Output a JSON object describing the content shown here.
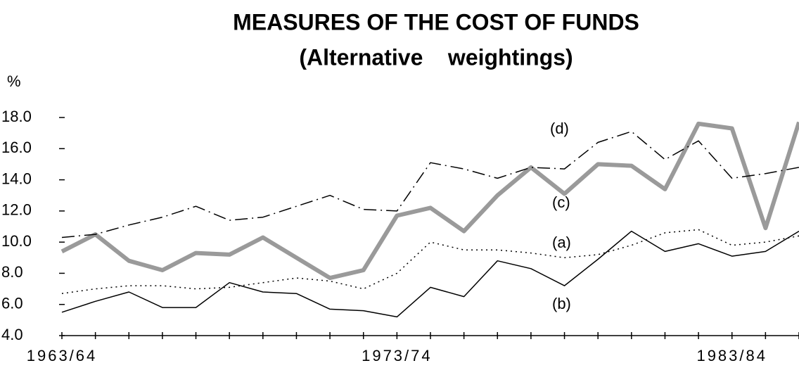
{
  "chart_data": {
    "type": "line",
    "title": "MEASURES OF THE COST OF FUNDS",
    "subtitle": "(Alternative    weightings)",
    "y_label": "%",
    "categories": [
      "1963/64",
      null,
      null,
      null,
      null,
      null,
      null,
      null,
      null,
      null,
      "1973/74",
      null,
      null,
      null,
      null,
      null,
      null,
      null,
      null,
      null,
      "1983/84",
      null,
      null
    ],
    "ylim": [
      4,
      18
    ],
    "yticks": [
      {
        "value": 4,
        "label": "4.0"
      },
      {
        "value": 6,
        "label": "6.0"
      },
      {
        "value": 8,
        "label": "8.0"
      },
      {
        "value": 10,
        "label": "10.0"
      },
      {
        "value": 12,
        "label": "12.0"
      },
      {
        "value": 14,
        "label": "14.0"
      },
      {
        "value": 16,
        "label": "16.0"
      },
      {
        "value": 18,
        "label": "18.0"
      }
    ],
    "series": [
      {
        "name": "(a)",
        "color": "#000000",
        "style": "dotted",
        "values": [
          6.7,
          7.0,
          7.2,
          7.2,
          7.0,
          7.1,
          7.4,
          7.7,
          7.5,
          7.0,
          8.0,
          10.0,
          9.5,
          9.5,
          9.3,
          9.0,
          9.2,
          9.8,
          10.6,
          10.8,
          9.8,
          10.0,
          10.4
        ]
      },
      {
        "name": "(b)",
        "color": "#000000",
        "style": "solid",
        "values": [
          5.5,
          6.2,
          6.8,
          5.8,
          5.8,
          7.4,
          6.8,
          6.7,
          5.7,
          5.6,
          5.2,
          7.1,
          6.5,
          8.8,
          8.3,
          7.2,
          8.9,
          10.7,
          9.4,
          9.9,
          9.1,
          9.4,
          10.7
        ]
      },
      {
        "name": "(c)",
        "color": "#9a9a9a",
        "style": "thick",
        "values": [
          9.4,
          10.5,
          8.8,
          8.2,
          9.3,
          9.2,
          10.3,
          9.0,
          7.7,
          8.2,
          11.7,
          12.2,
          10.7,
          13.0,
          14.8,
          13.1,
          15.0,
          14.9,
          13.4,
          17.6,
          17.3,
          10.9,
          17.7
        ]
      },
      {
        "name": "(d)",
        "color": "#000000",
        "style": "dashdot",
        "values": [
          10.3,
          10.5,
          11.1,
          11.6,
          12.3,
          11.4,
          11.6,
          12.3,
          13.0,
          12.1,
          12.0,
          15.1,
          14.7,
          14.1,
          14.8,
          14.7,
          16.4,
          17.1,
          15.3,
          16.5,
          14.1,
          14.4,
          14.8
        ]
      }
    ]
  }
}
